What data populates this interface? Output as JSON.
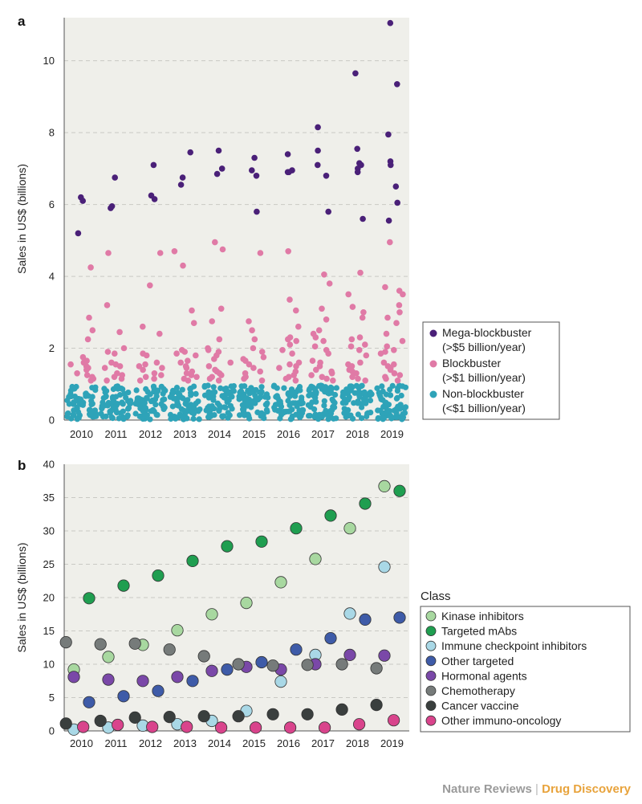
{
  "credit": {
    "journal": "Nature Reviews",
    "separator": "|",
    "section": "Drug Discovery"
  },
  "chart_data": [
    {
      "panel": "a",
      "type": "scatter",
      "ylabel": "Sales in US$ (billions)",
      "xlabel": "",
      "x_categories": [
        "2010",
        "2011",
        "2012",
        "2013",
        "2014",
        "2015",
        "2016",
        "2017",
        "2018",
        "2019"
      ],
      "ylim": [
        0,
        11.2
      ],
      "yticks": [
        0,
        2,
        4,
        6,
        8,
        10
      ],
      "grid": "horizontal dashed",
      "legend_position": "right",
      "note": "non-blockbuster points are a dense band of many drugs per year below $1 billion",
      "series": [
        {
          "name": "Mega-blockbuster\n(>$5 billion/year)",
          "color": "#4a2078",
          "points": {
            "2010": [
              6.2,
              6.1,
              5.2
            ],
            "2011": [
              6.75,
              5.95,
              5.9
            ],
            "2012": [
              7.1,
              6.25,
              6.15
            ],
            "2013": [
              7.45,
              6.75,
              6.55
            ],
            "2014": [
              7.5,
              7.0,
              6.85
            ],
            "2015": [
              7.3,
              6.95,
              6.8,
              5.8
            ],
            "2016": [
              7.4,
              6.95,
              6.9,
              6.9
            ],
            "2017": [
              8.15,
              7.5,
              7.1,
              6.8,
              5.8
            ],
            "2018": [
              9.65,
              7.55,
              7.15,
              7.1,
              7.0,
              6.9,
              5.6
            ],
            "2019": [
              11.05,
              9.35,
              7.95,
              7.2,
              7.1,
              6.5,
              6.05,
              5.55
            ]
          }
        },
        {
          "name": "Blockbuster\n(>$1 billion/year)",
          "color": "#e07aa6",
          "points": {
            "2010": [
              4.25,
              2.85,
              2.5,
              2.25,
              1.75,
              1.65,
              1.6,
              1.55,
              1.5,
              1.45,
              1.4,
              1.3,
              1.25,
              1.2,
              1.15,
              1.1
            ],
            "2011": [
              4.65,
              3.2,
              2.45,
              2.0,
              1.9,
              1.85,
              1.6,
              1.55,
              1.5,
              1.45,
              1.3,
              1.25,
              1.2,
              1.15,
              1.1
            ],
            "2012": [
              4.65,
              3.75,
              2.6,
              2.4,
              1.85,
              1.8,
              1.6,
              1.55,
              1.5,
              1.45,
              1.4,
              1.3,
              1.25,
              1.2,
              1.15,
              1.1
            ],
            "2013": [
              4.7,
              4.3,
              3.05,
              2.7,
              1.95,
              1.9,
              1.85,
              1.8,
              1.65,
              1.6,
              1.5,
              1.45,
              1.35,
              1.3,
              1.25,
              1.2,
              1.15,
              1.1
            ],
            "2014": [
              4.95,
              4.75,
              3.1,
              2.75,
              2.25,
              2.0,
              1.95,
              1.9,
              1.8,
              1.7,
              1.6,
              1.5,
              1.4,
              1.35,
              1.3,
              1.25,
              1.2,
              1.15,
              1.1
            ],
            "2015": [
              4.65,
              2.75,
              2.5,
              2.25,
              2.0,
              1.9,
              1.75,
              1.7,
              1.65,
              1.55,
              1.45,
              1.35,
              1.3,
              1.2,
              1.15,
              1.1
            ],
            "2016": [
              4.7,
              3.35,
              3.05,
              2.6,
              2.3,
              2.25,
              2.2,
              2.1,
              1.95,
              1.85,
              1.6,
              1.55,
              1.5,
              1.45,
              1.35,
              1.25,
              1.2,
              1.15,
              1.1
            ],
            "2017": [
              4.05,
              3.8,
              3.1,
              2.8,
              2.5,
              2.4,
              2.3,
              2.2,
              2.05,
              1.95,
              1.85,
              1.65,
              1.6,
              1.5,
              1.4,
              1.35,
              1.3,
              1.25,
              1.2,
              1.15,
              1.1
            ],
            "2018": [
              4.1,
              3.5,
              3.15,
              3.0,
              2.85,
              2.3,
              2.25,
              2.1,
              2.05,
              1.95,
              1.8,
              1.6,
              1.55,
              1.5,
              1.4,
              1.35,
              1.3,
              1.2,
              1.15,
              1.1
            ],
            "2019": [
              4.95,
              3.7,
              3.6,
              3.5,
              3.2,
              3.0,
              2.85,
              2.7,
              2.4,
              2.2,
              2.05,
              1.95,
              1.9,
              1.85,
              1.6,
              1.55,
              1.5,
              1.45,
              1.4,
              1.3,
              1.25,
              1.2,
              1.15,
              1.1
            ]
          }
        },
        {
          "name": "Non-blockbuster\n(<$1 billion/year)",
          "color": "#2ea3b8",
          "points_per_year": 60,
          "range": [
            0,
            1.0
          ]
        }
      ]
    },
    {
      "panel": "b",
      "type": "scatter",
      "ylabel": "Sales in US$ (billions)",
      "xlabel": "",
      "x": [
        "2010",
        "2011",
        "2012",
        "2013",
        "2014",
        "2015",
        "2016",
        "2017",
        "2018",
        "2019"
      ],
      "ylim": [
        0,
        40
      ],
      "yticks": [
        0,
        5,
        10,
        15,
        20,
        25,
        30,
        35,
        40
      ],
      "grid": "horizontal dashed",
      "legend_title": "Class",
      "legend_position": "right",
      "series": [
        {
          "name": "Kinase inhibitors",
          "color": "#a8d8a0",
          "offset": -0.22,
          "values": [
            9.2,
            11.1,
            12.9,
            15.1,
            17.5,
            19.2,
            22.3,
            25.8,
            30.4,
            36.7
          ]
        },
        {
          "name": "Targeted mAbs",
          "color": "#1f9e50",
          "offset": 0.22,
          "values": [
            19.9,
            21.8,
            23.3,
            25.5,
            27.7,
            28.4,
            30.4,
            32.3,
            34.1,
            36.0
          ]
        },
        {
          "name": "Immune checkpoint inhibitors",
          "color": "#a9d8e6",
          "offset": -0.22,
          "values": [
            0.2,
            0.5,
            0.8,
            1.0,
            1.5,
            3.0,
            7.4,
            11.4,
            17.6,
            24.6
          ]
        },
        {
          "name": "Other targeted",
          "color": "#3e5ba8",
          "offset": 0.22,
          "values": [
            4.3,
            5.2,
            6.0,
            7.5,
            9.2,
            10.3,
            12.2,
            13.9,
            16.7,
            17.0
          ]
        },
        {
          "name": "Hormonal agents",
          "color": "#7a48a8",
          "offset": -0.22,
          "values": [
            8.1,
            7.7,
            7.5,
            8.1,
            9.0,
            9.6,
            9.2,
            10.0,
            11.4,
            11.3
          ]
        },
        {
          "name": "Chemotherapy",
          "color": "#767b7a",
          "offset": -0.45,
          "values": [
            13.3,
            13.0,
            13.1,
            12.2,
            11.2,
            10.0,
            9.8,
            9.9,
            10.0,
            9.4
          ]
        },
        {
          "name": "Cancer vaccine",
          "color": "#3a3f3e",
          "offset": -0.45,
          "values": [
            1.1,
            1.5,
            2.0,
            2.1,
            2.2,
            2.2,
            2.5,
            2.5,
            3.2,
            3.9
          ]
        },
        {
          "name": "Other immuno-oncology",
          "color": "#d9448c",
          "offset": 0.05,
          "values": [
            0.6,
            0.9,
            0.6,
            0.6,
            0.5,
            0.5,
            0.5,
            0.5,
            1.0,
            1.6
          ]
        }
      ]
    }
  ]
}
